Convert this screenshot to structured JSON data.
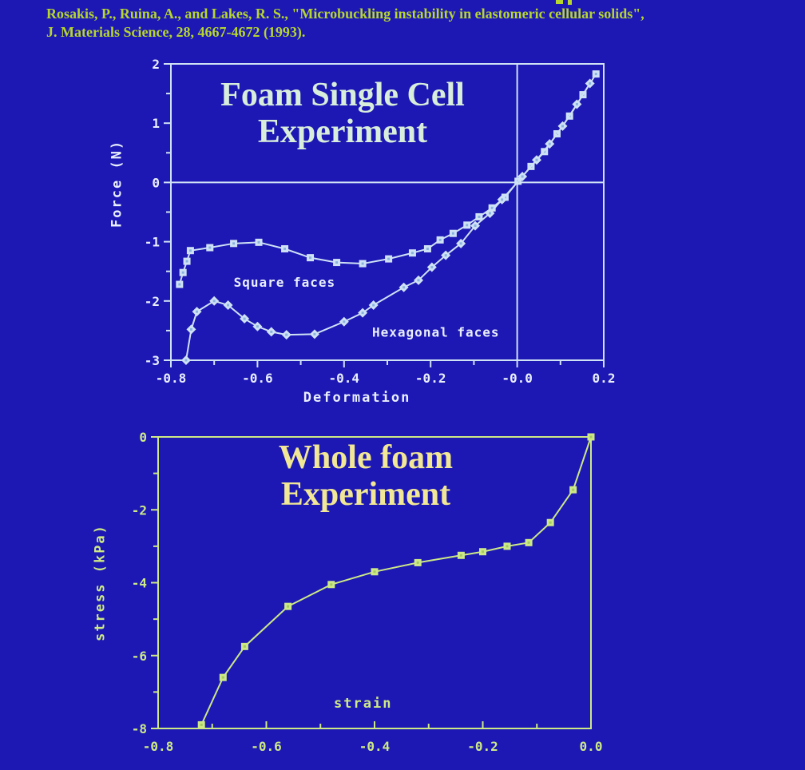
{
  "page": {
    "background_color": "#1d18b4"
  },
  "citation": {
    "line1": "Rosakis, P., Ruina, A., and Lakes, R. S., \"Microbuckling instability in elastomeric cellular solids\",",
    "line2": "J. Materials Science, 28, 4667-4672 (1993)."
  },
  "chart_data": [
    {
      "type": "line",
      "title_lines": [
        "Foam Single Cell",
        "Experiment"
      ],
      "xlabel": "Deformation",
      "ylabel": "Force (N)",
      "xlim": [
        -0.8,
        0.2
      ],
      "ylim": [
        -3,
        2
      ],
      "grid": false,
      "legend_position": "inline-labels",
      "x_ticks": {
        "major": [
          -0.8,
          -0.6,
          -0.4,
          -0.2,
          0.0,
          0.2
        ],
        "labels": [
          "-0.8",
          "-0.6",
          "-0.4",
          "-0.2",
          "-0.0",
          "0.2"
        ],
        "minor": [
          -0.7,
          -0.5,
          -0.3,
          -0.1,
          0.1
        ],
        "direction": "out"
      },
      "y_ticks": {
        "major": [
          2,
          1,
          0,
          -1,
          -2,
          -3
        ],
        "labels": [
          "2",
          "1",
          "0",
          "-1",
          "-2",
          "-3"
        ],
        "minor": [
          1.5,
          0.5,
          -0.5,
          -1.5,
          -2.5
        ]
      },
      "reference_lines": {
        "horizontal_at": 0,
        "vertical_at": 0
      },
      "colors": {
        "axis": "#cfe2f5",
        "text": "#e9effc",
        "marker_dot": "#8ab2de"
      },
      "xlabel_pos": [
        -0.37,
        -3.7
      ],
      "ylabel_pos": [
        -0.915,
        -0.02
      ],
      "series": [
        {
          "name": "Square faces",
          "marker": "square",
          "label_pos": [
            -0.655,
            -1.76
          ],
          "label_anchor": "start",
          "points": [
            [
              -0.78,
              -1.72
            ],
            [
              -0.772,
              -1.52
            ],
            [
              -0.763,
              -1.33
            ],
            [
              -0.755,
              -1.15
            ],
            [
              -0.71,
              -1.1
            ],
            [
              -0.655,
              -1.03
            ],
            [
              -0.597,
              -1.01
            ],
            [
              -0.537,
              -1.12
            ],
            [
              -0.478,
              -1.27
            ],
            [
              -0.417,
              -1.35
            ],
            [
              -0.357,
              -1.37
            ],
            [
              -0.297,
              -1.29
            ],
            [
              -0.242,
              -1.19
            ],
            [
              -0.207,
              -1.12
            ],
            [
              -0.178,
              -0.97
            ],
            [
              -0.148,
              -0.86
            ],
            [
              -0.116,
              -0.72
            ],
            [
              -0.088,
              -0.58
            ],
            [
              -0.058,
              -0.43
            ],
            [
              -0.028,
              -0.25
            ],
            [
              0.002,
              0.02
            ],
            [
              0.032,
              0.27
            ],
            [
              0.063,
              0.52
            ],
            [
              0.092,
              0.82
            ],
            [
              0.121,
              1.12
            ],
            [
              0.152,
              1.48
            ],
            [
              0.182,
              1.83
            ]
          ]
        },
        {
          "name": "Hexagonal faces",
          "marker": "diamond",
          "label_pos": [
            -0.335,
            -2.6
          ],
          "label_anchor": "start",
          "points": [
            [
              -0.765,
              -3.0
            ],
            [
              -0.753,
              -2.48
            ],
            [
              -0.74,
              -2.18
            ],
            [
              -0.7,
              -2.0
            ],
            [
              -0.668,
              -2.07
            ],
            [
              -0.63,
              -2.3
            ],
            [
              -0.6,
              -2.43
            ],
            [
              -0.568,
              -2.52
            ],
            [
              -0.533,
              -2.57
            ],
            [
              -0.468,
              -2.56
            ],
            [
              -0.4,
              -2.35
            ],
            [
              -0.357,
              -2.2
            ],
            [
              -0.332,
              -2.07
            ],
            [
              -0.262,
              -1.77
            ],
            [
              -0.228,
              -1.65
            ],
            [
              -0.197,
              -1.43
            ],
            [
              -0.165,
              -1.23
            ],
            [
              -0.13,
              -1.03
            ],
            [
              -0.097,
              -0.73
            ],
            [
              -0.063,
              -0.52
            ],
            [
              -0.035,
              -0.29
            ],
            [
              0.012,
              0.1
            ],
            [
              0.045,
              0.38
            ],
            [
              0.075,
              0.65
            ],
            [
              0.105,
              0.95
            ],
            [
              0.138,
              1.32
            ],
            [
              0.168,
              1.67
            ]
          ]
        }
      ]
    },
    {
      "type": "line",
      "title_lines": [
        "Whole foam",
        "Experiment"
      ],
      "xlabel": "strain",
      "ylabel": "stress (kPa)",
      "xlim": [
        -0.8,
        0.0
      ],
      "ylim": [
        -8,
        0
      ],
      "grid": false,
      "legend_position": "none",
      "x_ticks": {
        "major": [
          -0.8,
          -0.6,
          -0.4,
          -0.2,
          0.0
        ],
        "labels": [
          "-0.8",
          "-0.6",
          "-0.4",
          "-0.2",
          "0.0"
        ],
        "minor": [
          -0.7,
          -0.5,
          -0.3,
          -0.1
        ],
        "direction": "in"
      },
      "y_ticks": {
        "major": [
          0,
          -2,
          -4,
          -6,
          -8
        ],
        "labels": [
          "0",
          "-2",
          "-4",
          "-6",
          "-8"
        ],
        "minor": [
          -1,
          -3,
          -5,
          -7
        ]
      },
      "reference_lines": {},
      "colors": {
        "axis": "#cde986",
        "text": "#cde986",
        "marker_dot": "#a3c964"
      },
      "xlabel_pos": [
        -0.421,
        -7.43
      ],
      "ylabel_pos": [
        -0.9,
        -4.0
      ],
      "series": [
        {
          "name": "Whole foam",
          "marker": "square",
          "label_pos": null,
          "label_anchor": "start",
          "points": [
            [
              -0.72,
              -7.9
            ],
            [
              -0.68,
              -6.6
            ],
            [
              -0.64,
              -5.75
            ],
            [
              -0.56,
              -4.65
            ],
            [
              -0.48,
              -4.05
            ],
            [
              -0.4,
              -3.7
            ],
            [
              -0.32,
              -3.45
            ],
            [
              -0.24,
              -3.25
            ],
            [
              -0.2,
              -3.15
            ],
            [
              -0.155,
              -3.0
            ],
            [
              -0.115,
              -2.9
            ],
            [
              -0.075,
              -2.35
            ],
            [
              -0.033,
              -1.45
            ],
            [
              0.0,
              0.0
            ]
          ]
        }
      ]
    }
  ]
}
